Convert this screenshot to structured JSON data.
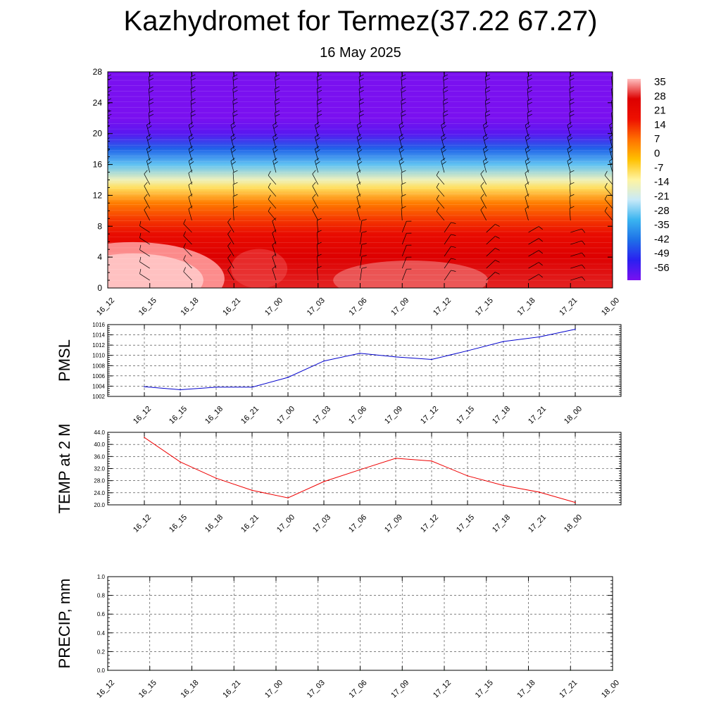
{
  "header": {
    "title": "Kazhydromet for Termez(37.22 67.27)",
    "subtitle": "16 May 2025"
  },
  "colors": {
    "pmsl_line": "#0000cc",
    "temp_line": "#ee0000",
    "precip_line": "#006600",
    "colorbar_stops": [
      "#7a10f0",
      "#2a20f0",
      "#1e70e8",
      "#3ab4f0",
      "#c8eaf8",
      "#fff4a0",
      "#ffc000",
      "#ff7000",
      "#ee1000",
      "#dd0000",
      "#ffc0c0"
    ]
  },
  "chart_data": [
    {
      "type": "heatmap",
      "name": "upper-air-cross-section",
      "x": [
        "16_12",
        "16_15",
        "16_18",
        "16_21",
        "17_00",
        "17_03",
        "17_06",
        "17_09",
        "17_12",
        "17_15",
        "17_18",
        "17_21",
        "18_00"
      ],
      "yticks": [
        0,
        4,
        8,
        12,
        16,
        20,
        24,
        28
      ],
      "ylim": [
        0,
        28
      ],
      "colorbar_labels": [
        "35",
        "28",
        "21",
        "14",
        "7",
        "0",
        "-7",
        "-14",
        "-21",
        "-28",
        "-35",
        "-42",
        "-49",
        "-56"
      ],
      "colorbar_range": [
        -60,
        38
      ],
      "temperature_profile": [
        {
          "y": 0,
          "value": 30
        },
        {
          "y": 4,
          "value": 28
        },
        {
          "y": 7,
          "value": 21
        },
        {
          "y": 9,
          "value": 14
        },
        {
          "y": 11,
          "value": 7
        },
        {
          "y": 13,
          "value": -7
        },
        {
          "y": 14,
          "value": -14
        },
        {
          "y": 16,
          "value": -28
        },
        {
          "y": 18,
          "value": -42
        },
        {
          "y": 20,
          "value": -56
        },
        {
          "y": 22,
          "value": -60
        },
        {
          "y": 28,
          "value": -60
        }
      ],
      "wind_barbs": true
    },
    {
      "type": "line",
      "name": "pmsl",
      "ylabel": "PMSL",
      "x": [
        "16_12",
        "16_15",
        "16_18",
        "16_21",
        "17_00",
        "17_03",
        "17_06",
        "17_09",
        "17_12",
        "17_15",
        "17_18",
        "17_21",
        "18_00"
      ],
      "values": [
        1003.9,
        1003.3,
        1003.8,
        1003.8,
        1005.7,
        1008.9,
        1010.4,
        1009.7,
        1009.2,
        1010.9,
        1012.7,
        1013.6,
        1015.1
      ],
      "yticks": [
        "1002",
        "1004",
        "1006",
        "1008",
        "1010",
        "1012",
        "1014",
        "1016"
      ],
      "ylim": [
        1002,
        1016
      ],
      "grid": true
    },
    {
      "type": "line",
      "name": "temp-2m",
      "ylabel": "TEMP at 2 M",
      "x": [
        "16_12",
        "16_15",
        "16_18",
        "16_21",
        "17_00",
        "17_03",
        "17_06",
        "17_09",
        "17_12",
        "17_15",
        "17_18",
        "17_21",
        "18_00"
      ],
      "values": [
        42.3,
        34.2,
        28.8,
        24.8,
        22.3,
        27.7,
        31.6,
        35.4,
        34.5,
        29.6,
        26.4,
        24.2,
        20.8
      ],
      "yticks": [
        "20.0",
        "24.0",
        "28.0",
        "32.0",
        "36.0",
        "40.0",
        "44.0"
      ],
      "ylim": [
        20,
        44
      ],
      "grid": true
    },
    {
      "type": "line",
      "name": "precip",
      "ylabel": "PRECIP, mm",
      "x": [
        "16_12",
        "16_15",
        "16_18",
        "16_21",
        "17_00",
        "17_03",
        "17_06",
        "17_09",
        "17_12",
        "17_15",
        "17_18",
        "17_21",
        "18_00"
      ],
      "values": [
        0,
        0,
        0,
        0,
        0,
        0,
        0,
        0,
        0,
        0,
        0,
        0,
        0
      ],
      "yticks": [
        "0.0",
        "0.2",
        "0.4",
        "0.6",
        "0.8",
        "1.0"
      ],
      "ylim": [
        0,
        1
      ],
      "grid": true
    }
  ]
}
